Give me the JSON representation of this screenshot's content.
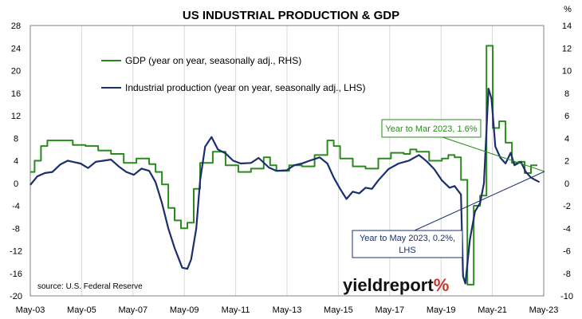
{
  "chart_data": {
    "type": "line",
    "title": "US INDUSTRIAL PRODUCTION & GDP",
    "right_axis_unit": "%",
    "x_ticks": [
      "May-03",
      "May-05",
      "May-07",
      "May-09",
      "May-11",
      "May-13",
      "May-15",
      "May-17",
      "May-19",
      "May-21",
      "May-23"
    ],
    "y_left": {
      "min": -20,
      "max": 28,
      "ticks": [
        28,
        24,
        20,
        16,
        12,
        8,
        4,
        0,
        -4,
        -8,
        -12,
        -16,
        -20
      ]
    },
    "y_right": {
      "min": -10,
      "max": 14,
      "ticks": [
        14,
        12,
        10,
        8,
        6,
        4,
        2,
        0,
        -2,
        -4,
        -6,
        -8,
        -10
      ]
    },
    "grid": "vertical",
    "legend_position": "top-left",
    "series": [
      {
        "name": "GDP (year on year, seasonally adj., RHS)",
        "axis": "right",
        "color": "#2a8a1e",
        "step": true,
        "points": [
          [
            2003.33,
            1.0
          ],
          [
            2003.5,
            2.0
          ],
          [
            2003.75,
            3.3
          ],
          [
            2004.0,
            3.8
          ],
          [
            2004.5,
            3.8
          ],
          [
            2005.0,
            3.4
          ],
          [
            2005.5,
            3.3
          ],
          [
            2006.0,
            2.9
          ],
          [
            2006.5,
            2.6
          ],
          [
            2007.0,
            1.8
          ],
          [
            2007.5,
            2.2
          ],
          [
            2008.0,
            1.7
          ],
          [
            2008.25,
            1.0
          ],
          [
            2008.5,
            -0.1
          ],
          [
            2008.75,
            -2.2
          ],
          [
            2009.0,
            -3.3
          ],
          [
            2009.25,
            -4.0
          ],
          [
            2009.5,
            -3.5
          ],
          [
            2009.75,
            -0.5
          ],
          [
            2010.0,
            1.8
          ],
          [
            2010.5,
            2.8
          ],
          [
            2011.0,
            1.6
          ],
          [
            2011.5,
            1.0
          ],
          [
            2012.0,
            1.3
          ],
          [
            2012.5,
            2.3
          ],
          [
            2012.75,
            1.6
          ],
          [
            2013.0,
            1.1
          ],
          [
            2013.5,
            1.6
          ],
          [
            2014.0,
            1.5
          ],
          [
            2014.5,
            2.5
          ],
          [
            2015.0,
            3.8
          ],
          [
            2015.25,
            3.3
          ],
          [
            2015.5,
            2.2
          ],
          [
            2016.0,
            1.5
          ],
          [
            2016.5,
            1.3
          ],
          [
            2017.0,
            2.2
          ],
          [
            2017.5,
            2.7
          ],
          [
            2018.0,
            2.6
          ],
          [
            2018.25,
            3.0
          ],
          [
            2018.5,
            2.8
          ],
          [
            2019.0,
            2.0
          ],
          [
            2019.5,
            2.2
          ],
          [
            2019.75,
            2.5
          ],
          [
            2020.0,
            2.3
          ],
          [
            2020.25,
            0.3
          ],
          [
            2020.5,
            -9.0
          ],
          [
            2020.75,
            -2.0
          ],
          [
            2021.0,
            -1.1
          ],
          [
            2021.25,
            12.2
          ],
          [
            2021.5,
            4.9
          ],
          [
            2021.75,
            5.5
          ],
          [
            2022.0,
            3.6
          ],
          [
            2022.25,
            1.8
          ],
          [
            2022.5,
            1.9
          ],
          [
            2022.75,
            0.9
          ],
          [
            2023.0,
            1.6
          ],
          [
            2023.25,
            1.6
          ]
        ]
      },
      {
        "name": "Industrial production (year on year, seasonally adj., LHS)",
        "axis": "left",
        "color": "#1b2f6e",
        "step": false,
        "points": [
          [
            2003.33,
            -0.3
          ],
          [
            2003.6,
            1.2
          ],
          [
            2003.9,
            1.8
          ],
          [
            2004.2,
            2.0
          ],
          [
            2004.5,
            3.3
          ],
          [
            2004.8,
            4.0
          ],
          [
            2005.0,
            3.8
          ],
          [
            2005.3,
            3.5
          ],
          [
            2005.6,
            2.7
          ],
          [
            2005.9,
            3.8
          ],
          [
            2006.2,
            4.0
          ],
          [
            2006.5,
            4.2
          ],
          [
            2006.8,
            3.0
          ],
          [
            2007.1,
            2.0
          ],
          [
            2007.4,
            1.5
          ],
          [
            2007.7,
            2.6
          ],
          [
            2008.0,
            2.2
          ],
          [
            2008.25,
            0.2
          ],
          [
            2008.5,
            -3.5
          ],
          [
            2008.75,
            -8.0
          ],
          [
            2009.0,
            -11.5
          ],
          [
            2009.3,
            -15.0
          ],
          [
            2009.5,
            -15.2
          ],
          [
            2009.65,
            -13.5
          ],
          [
            2009.85,
            -8.0
          ],
          [
            2010.0,
            0.5
          ],
          [
            2010.2,
            6.5
          ],
          [
            2010.45,
            8.2
          ],
          [
            2010.7,
            6.0
          ],
          [
            2011.0,
            5.3
          ],
          [
            2011.3,
            4.0
          ],
          [
            2011.6,
            3.5
          ],
          [
            2012.0,
            3.6
          ],
          [
            2012.3,
            4.5
          ],
          [
            2012.7,
            2.8
          ],
          [
            2013.0,
            2.2
          ],
          [
            2013.4,
            2.3
          ],
          [
            2013.7,
            3.2
          ],
          [
            2014.0,
            3.5
          ],
          [
            2014.3,
            4.0
          ],
          [
            2014.7,
            4.6
          ],
          [
            2015.0,
            3.5
          ],
          [
            2015.25,
            1.0
          ],
          [
            2015.5,
            -1.0
          ],
          [
            2015.75,
            -2.8
          ],
          [
            2016.0,
            -1.5
          ],
          [
            2016.25,
            -1.8
          ],
          [
            2016.5,
            -0.8
          ],
          [
            2016.75,
            -1.0
          ],
          [
            2017.0,
            0.5
          ],
          [
            2017.4,
            2.5
          ],
          [
            2017.8,
            3.5
          ],
          [
            2018.2,
            4.0
          ],
          [
            2018.6,
            5.0
          ],
          [
            2018.9,
            3.9
          ],
          [
            2019.2,
            2.5
          ],
          [
            2019.5,
            0.5
          ],
          [
            2019.8,
            -0.8
          ],
          [
            2020.0,
            -0.5
          ],
          [
            2020.25,
            -2.0
          ],
          [
            2020.33,
            -16.5
          ],
          [
            2020.42,
            -17.8
          ],
          [
            2020.6,
            -10.0
          ],
          [
            2020.8,
            -5.0
          ],
          [
            2021.0,
            -3.5
          ],
          [
            2021.15,
            0.0
          ],
          [
            2021.33,
            16.8
          ],
          [
            2021.45,
            15.0
          ],
          [
            2021.6,
            6.5
          ],
          [
            2021.8,
            4.5
          ],
          [
            2022.0,
            3.5
          ],
          [
            2022.2,
            5.4
          ],
          [
            2022.35,
            3.2
          ],
          [
            2022.6,
            3.8
          ],
          [
            2022.8,
            2.0
          ],
          [
            2023.0,
            1.0
          ],
          [
            2023.2,
            0.5
          ],
          [
            2023.33,
            0.2
          ]
        ]
      }
    ],
    "annotations": [
      {
        "text": "Year to Mar 2023, 1.6%",
        "color": "#2a8a1e"
      },
      {
        "text_lines": [
          "Year to May 2023, 0.2%,",
          "LHS"
        ],
        "color": "#1b2f6e"
      }
    ],
    "source": "source: U.S. Federal Reserve",
    "brand": {
      "text": "yieldreport",
      "symbol": "%"
    }
  }
}
